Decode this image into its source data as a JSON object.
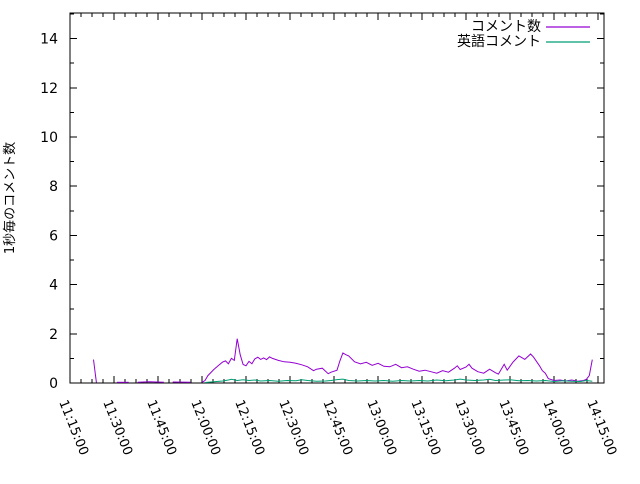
{
  "colors": {
    "background": "#ffffff",
    "axis": "#000000",
    "series1": "#9400d3",
    "series2": "#009e73"
  },
  "chart_data": {
    "type": "line",
    "title": "",
    "xlabel": "",
    "ylabel": "1秒毎のコメント数",
    "grid": false,
    "legend_position": "top-right-inside",
    "ylim": [
      0,
      15.04
    ],
    "y_ticks": [
      0,
      2,
      4,
      6,
      8,
      10,
      12,
      14
    ],
    "y_minor_step": 1,
    "xlim_minutes": [
      675,
      857
    ],
    "x_tick_labels": [
      "11:15:00",
      "11:30:00",
      "11:45:00",
      "12:00:00",
      "12:15:00",
      "12:30:00",
      "12:45:00",
      "13:00:00",
      "13:15:00",
      "13:30:00",
      "13:45:00",
      "14:00:00",
      "14:15:00"
    ],
    "x_minor_step_minutes": 3.75,
    "series": [
      {
        "name": "コメント数",
        "color": "#9400d3",
        "segments": [
          [
            [
              "11:23",
              0.95
            ],
            [
              "11:24",
              0.02
            ]
          ],
          [
            [
              "11:31",
              0.03
            ],
            [
              "11:35",
              0.03
            ]
          ],
          [
            [
              "11:38",
              0.03
            ],
            [
              "11:42",
              0.05
            ],
            [
              "11:47",
              0.03
            ]
          ],
          [
            [
              "11:50",
              0.04
            ],
            [
              "11:56",
              0.03
            ]
          ],
          [
            [
              "12:00",
              0.03
            ],
            [
              "12:01",
              0.1
            ],
            [
              "12:02",
              0.3
            ],
            [
              "12:04",
              0.55
            ],
            [
              "12:05",
              0.65
            ],
            [
              "12:06",
              0.75
            ],
            [
              "12:07",
              0.85
            ],
            [
              "12:08",
              0.9
            ],
            [
              "12:09",
              0.78
            ],
            [
              "12:10",
              1.0
            ],
            [
              "12:11",
              0.92
            ],
            [
              "12:12",
              1.8
            ],
            [
              "12:13",
              1.15
            ],
            [
              "12:14",
              0.75
            ],
            [
              "12:15",
              0.7
            ],
            [
              "12:16",
              0.88
            ],
            [
              "12:17",
              0.78
            ],
            [
              "12:18",
              0.98
            ],
            [
              "12:19",
              1.05
            ],
            [
              "12:20",
              0.96
            ],
            [
              "12:21",
              1.02
            ],
            [
              "12:22",
              0.95
            ],
            [
              "12:23",
              1.06
            ],
            [
              "12:24",
              1.0
            ],
            [
              "12:26",
              0.92
            ],
            [
              "12:28",
              0.86
            ],
            [
              "12:30",
              0.84
            ],
            [
              "12:32",
              0.8
            ],
            [
              "12:34",
              0.74
            ],
            [
              "12:36",
              0.66
            ],
            [
              "12:38",
              0.5
            ],
            [
              "12:39",
              0.56
            ],
            [
              "12:41",
              0.6
            ],
            [
              "12:43",
              0.38
            ],
            [
              "12:44",
              0.44
            ],
            [
              "12:46",
              0.52
            ],
            [
              "12:47",
              0.9
            ],
            [
              "12:48",
              1.22
            ],
            [
              "12:49",
              1.15
            ],
            [
              "12:50",
              1.1
            ],
            [
              "12:52",
              0.86
            ],
            [
              "12:54",
              0.78
            ],
            [
              "12:56",
              0.84
            ],
            [
              "12:58",
              0.72
            ],
            [
              "13:00",
              0.8
            ],
            [
              "13:02",
              0.68
            ],
            [
              "13:04",
              0.66
            ],
            [
              "13:06",
              0.76
            ],
            [
              "13:08",
              0.62
            ],
            [
              "13:10",
              0.66
            ],
            [
              "13:12",
              0.56
            ],
            [
              "13:14",
              0.48
            ],
            [
              "13:16",
              0.52
            ],
            [
              "13:18",
              0.46
            ],
            [
              "13:20",
              0.4
            ],
            [
              "13:22",
              0.5
            ],
            [
              "13:24",
              0.44
            ],
            [
              "13:26",
              0.6
            ],
            [
              "13:27",
              0.7
            ],
            [
              "13:28",
              0.55
            ],
            [
              "13:30",
              0.65
            ],
            [
              "13:31",
              0.76
            ],
            [
              "13:32",
              0.6
            ],
            [
              "13:34",
              0.46
            ],
            [
              "13:36",
              0.4
            ],
            [
              "13:38",
              0.56
            ],
            [
              "13:40",
              0.42
            ],
            [
              "13:41",
              0.36
            ],
            [
              "13:43",
              0.76
            ],
            [
              "13:44",
              0.52
            ],
            [
              "13:46",
              0.85
            ],
            [
              "13:48",
              1.1
            ],
            [
              "13:50",
              0.96
            ],
            [
              "13:52",
              1.18
            ],
            [
              "13:53",
              1.05
            ],
            [
              "13:55",
              0.7
            ],
            [
              "13:56",
              0.5
            ],
            [
              "13:57",
              0.4
            ],
            [
              "13:58",
              0.18
            ],
            [
              "14:00",
              0.1
            ],
            [
              "14:02",
              0.12
            ],
            [
              "14:04",
              0.08
            ],
            [
              "14:06",
              0.12
            ],
            [
              "14:08",
              0.07
            ],
            [
              "14:10",
              0.1
            ],
            [
              "14:11",
              0.15
            ],
            [
              "14:12",
              0.3
            ],
            [
              "14:13",
              0.95
            ]
          ]
        ]
      },
      {
        "name": "英語コメント",
        "color": "#009e73",
        "segments": [
          [
            [
              "12:01",
              0.02
            ],
            [
              "12:04",
              0.05
            ],
            [
              "12:07",
              0.08
            ],
            [
              "12:09",
              0.12
            ],
            [
              "12:10",
              0.15
            ],
            [
              "12:12",
              0.1
            ],
            [
              "12:14",
              0.13
            ],
            [
              "12:16",
              0.1
            ],
            [
              "12:18",
              0.12
            ],
            [
              "12:20",
              0.08
            ],
            [
              "12:23",
              0.1
            ],
            [
              "12:26",
              0.07
            ],
            [
              "12:29",
              0.1
            ],
            [
              "12:32",
              0.09
            ],
            [
              "12:34",
              0.13
            ],
            [
              "12:36",
              0.1
            ],
            [
              "12:39",
              0.07
            ],
            [
              "12:42",
              0.08
            ],
            [
              "12:44",
              0.1
            ],
            [
              "12:46",
              0.14
            ],
            [
              "12:48",
              0.16
            ],
            [
              "12:50",
              0.1
            ],
            [
              "12:53",
              0.08
            ],
            [
              "12:56",
              0.1
            ],
            [
              "12:59",
              0.08
            ],
            [
              "13:02",
              0.1
            ],
            [
              "13:05",
              0.07
            ],
            [
              "13:08",
              0.1
            ],
            [
              "13:11",
              0.08
            ],
            [
              "13:14",
              0.1
            ],
            [
              "13:17",
              0.08
            ],
            [
              "13:20",
              0.12
            ],
            [
              "13:23",
              0.09
            ],
            [
              "13:26",
              0.12
            ],
            [
              "13:28",
              0.16
            ],
            [
              "13:30",
              0.12
            ],
            [
              "13:33",
              0.1
            ],
            [
              "13:36",
              0.12
            ],
            [
              "13:38",
              0.15
            ],
            [
              "13:40",
              0.1
            ],
            [
              "13:43",
              0.12
            ],
            [
              "13:45",
              0.13
            ],
            [
              "13:48",
              0.09
            ],
            [
              "13:51",
              0.1
            ],
            [
              "13:54",
              0.08
            ],
            [
              "13:57",
              0.1
            ],
            [
              "14:00",
              0.06
            ],
            [
              "14:03",
              0.09
            ],
            [
              "14:06",
              0.07
            ],
            [
              "14:09",
              0.06
            ],
            [
              "14:11",
              0.1
            ],
            [
              "14:13",
              0.07
            ]
          ]
        ]
      }
    ]
  }
}
